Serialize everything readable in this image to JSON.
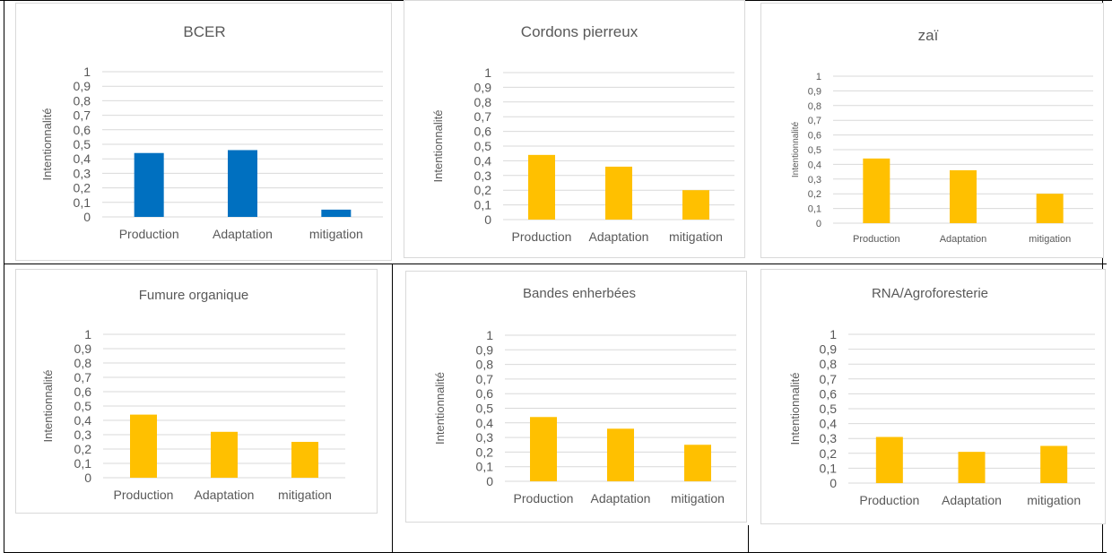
{
  "chart_data": [
    {
      "type": "bar",
      "title": "BCER",
      "ylabel": "Intentionnalité",
      "categories": [
        "Production",
        "Adaptation",
        "mitigation"
      ],
      "values": [
        0.44,
        0.46,
        0.05
      ],
      "ylim": [
        0,
        1
      ],
      "yticks": [
        "0",
        "0,1",
        "0,2",
        "0,3",
        "0,4",
        "0,5",
        "0,6",
        "0,7",
        "0,8",
        "0,9",
        "1"
      ],
      "grid": true,
      "color": "#0070c0"
    },
    {
      "type": "bar",
      "title": "Cordons pierreux",
      "ylabel": "Intentionnalité",
      "categories": [
        "Production",
        "Adaptation",
        "mitigation"
      ],
      "values": [
        0.44,
        0.36,
        0.2
      ],
      "ylim": [
        0,
        1
      ],
      "yticks": [
        "0",
        "0,1",
        "0,2",
        "0,3",
        "0,4",
        "0,5",
        "0,6",
        "0,7",
        "0,8",
        "0,9",
        "1"
      ],
      "grid": true,
      "color": "#ffc000"
    },
    {
      "type": "bar",
      "title": "zaï",
      "ylabel": "Intentionnalité",
      "categories": [
        "Production",
        "Adaptation",
        "mitigation"
      ],
      "values": [
        0.44,
        0.36,
        0.2
      ],
      "ylim": [
        0,
        1
      ],
      "yticks": [
        "0",
        "0,1",
        "0,2",
        "0,3",
        "0,4",
        "0,5",
        "0,6",
        "0,7",
        "0,8",
        "0,9",
        "1"
      ],
      "grid": true,
      "color": "#ffc000"
    },
    {
      "type": "bar",
      "title": "Fumure organique",
      "ylabel": "Intentionnalité",
      "categories": [
        "Production",
        "Adaptation",
        "mitigation"
      ],
      "values": [
        0.44,
        0.32,
        0.25
      ],
      "ylim": [
        0,
        1
      ],
      "yticks": [
        "0",
        "0,1",
        "0,2",
        "0,3",
        "0,4",
        "0,5",
        "0,6",
        "0,7",
        "0,8",
        "0,9",
        "1"
      ],
      "grid": true,
      "color": "#ffc000"
    },
    {
      "type": "bar",
      "title": "Bandes enherbées",
      "ylabel": "Intentionnalité",
      "categories": [
        "Production",
        "Adaptation",
        "mitigation"
      ],
      "values": [
        0.44,
        0.36,
        0.25
      ],
      "ylim": [
        0,
        1
      ],
      "yticks": [
        "0",
        "0,1",
        "0,2",
        "0,3",
        "0,4",
        "0,5",
        "0,6",
        "0,7",
        "0,8",
        "0,9",
        "1"
      ],
      "grid": true,
      "color": "#ffc000"
    },
    {
      "type": "bar",
      "title": "RNA/Agroforesterie",
      "ylabel": "Intentionnalité",
      "categories": [
        "Production",
        "Adaptation",
        "mitigation"
      ],
      "values": [
        0.31,
        0.21,
        0.25
      ],
      "ylim": [
        0,
        1
      ],
      "yticks": [
        "0",
        "0,1",
        "0,2",
        "0,3",
        "0,4",
        "0,5",
        "0,6",
        "0,7",
        "0,8",
        "0,9",
        "1"
      ],
      "grid": true,
      "color": "#ffc000"
    }
  ]
}
